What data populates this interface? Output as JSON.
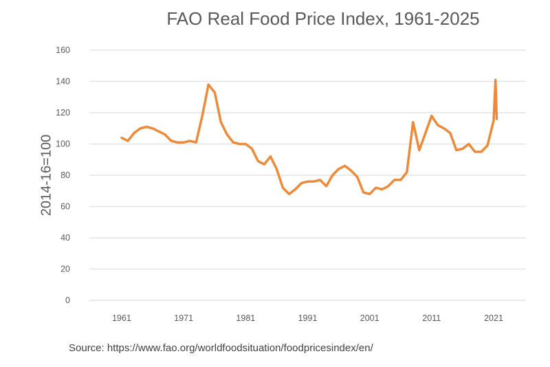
{
  "chart_data": {
    "type": "line",
    "title": "FAO Real Food Price Index, 1961-2025",
    "xlabel": "",
    "ylabel": "2014-16=100",
    "ylim": [
      0,
      160
    ],
    "yticks": [
      0,
      20,
      40,
      60,
      80,
      100,
      120,
      140,
      160
    ],
    "xticks": [
      "1961",
      "1971",
      "1981",
      "1991",
      "2001",
      "2011",
      "2021"
    ],
    "grid": true,
    "source": "Source: https://www.fao.org/worldfoodsituation/foodpricesindex/en/",
    "series": [
      {
        "name": "Real Food Price Index",
        "color": "#ED8A3A",
        "x": [
          1961,
          1962,
          1963,
          1964,
          1965,
          1966,
          1967,
          1968,
          1969,
          1970,
          1971,
          1972,
          1973,
          1974,
          1975,
          1976,
          1977,
          1978,
          1979,
          1980,
          1981,
          1982,
          1983,
          1984,
          1985,
          1986,
          1987,
          1988,
          1989,
          1990,
          1991,
          1992,
          1993,
          1994,
          1995,
          1996,
          1997,
          1998,
          1999,
          2000,
          2001,
          2002,
          2003,
          2004,
          2005,
          2006,
          2007,
          2008,
          2009,
          2010,
          2011,
          2012,
          2013,
          2014,
          2015,
          2016,
          2017,
          2018,
          2019,
          2020,
          2021,
          2021.3,
          2021.5
        ],
        "values": [
          104,
          102,
          107,
          110,
          111,
          110,
          108,
          106,
          102,
          101,
          101,
          102,
          101,
          118,
          138,
          133,
          114,
          106,
          101,
          100,
          100,
          97,
          89,
          87,
          92,
          84,
          72,
          68,
          71,
          75,
          76,
          76,
          77,
          73,
          80,
          84,
          86,
          83,
          79,
          69,
          68,
          72,
          71,
          73,
          77,
          77,
          82,
          114,
          96,
          107,
          118,
          112,
          110,
          107,
          96,
          97,
          100,
          95,
          95,
          99,
          115,
          141,
          116
        ]
      }
    ]
  }
}
